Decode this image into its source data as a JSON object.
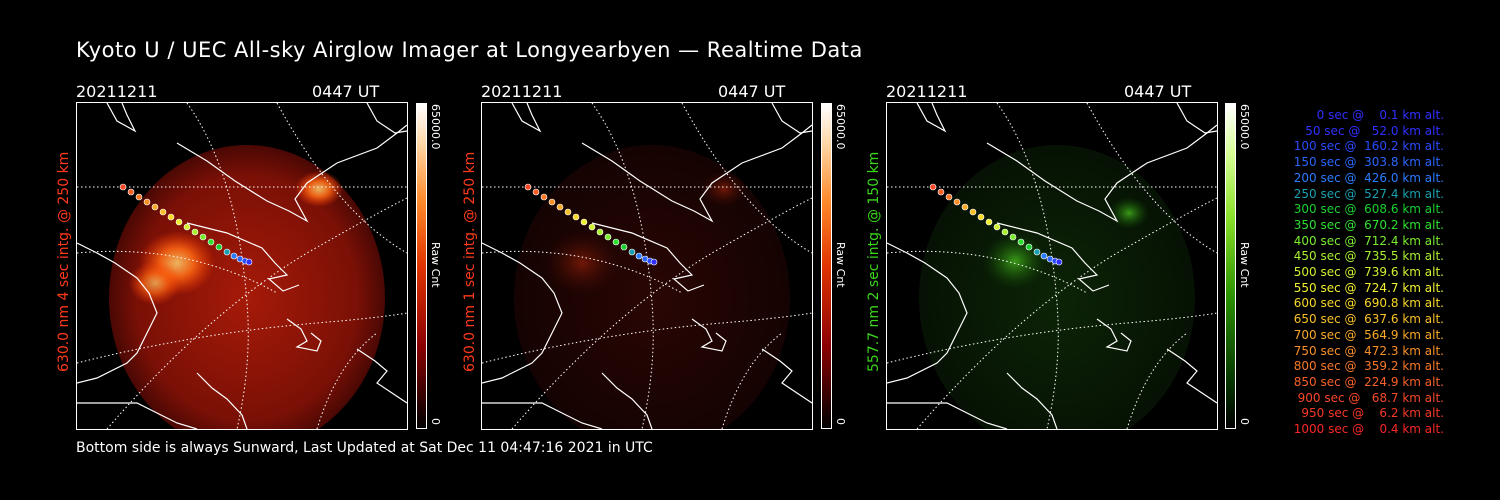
{
  "title": "Kyoto U / UEC All-sky Airglow Imager at Longyearbyen — Realtime Data",
  "footer": "Bottom side is always Sunward, Last Updated at Sat Dec 11 04:47:16 2021 in UTC",
  "panels": [
    {
      "date": "20211211",
      "time": "0447 UT",
      "ylabel": "630.0 nm 4 sec intg. @ 250 km",
      "ylabel_color": "#ff3a1a",
      "cbar_max": "65000.0",
      "cbar_min": "0",
      "cbar_unit": "Raw Cnt"
    },
    {
      "date": "20211211",
      "time": "0447 UT",
      "ylabel": "630.0 nm 1 sec intg. @ 250 km",
      "ylabel_color": "#ff3a1a",
      "cbar_max": "65000.0",
      "cbar_min": "0",
      "cbar_unit": "Raw Cnt"
    },
    {
      "date": "20211211",
      "time": "0447 UT",
      "ylabel": "557.7 nm 2 sec intg. @ 150 km",
      "ylabel_color": "#3ad81a",
      "cbar_max": "65000.0",
      "cbar_min": "0",
      "cbar_unit": "Raw Cnt"
    }
  ],
  "legend": [
    {
      "text": "   0 sec @    0.1 km alt.",
      "color": "#3030ff"
    },
    {
      "text": "  50 sec @   52.0 km alt.",
      "color": "#3030ff"
    },
    {
      "text": " 100 sec @  160.2 km alt.",
      "color": "#2a4aff"
    },
    {
      "text": " 150 sec @  303.8 km alt.",
      "color": "#2a66ff"
    },
    {
      "text": " 200 sec @  426.0 km alt.",
      "color": "#2a7cff"
    },
    {
      "text": " 250 sec @  527.4 km alt.",
      "color": "#1aa0b0"
    },
    {
      "text": " 300 sec @  608.6 km alt.",
      "color": "#1ad030"
    },
    {
      "text": " 350 sec @  670.2 km alt.",
      "color": "#30e030"
    },
    {
      "text": " 400 sec @  712.4 km alt.",
      "color": "#7aec30"
    },
    {
      "text": " 450 sec @  735.5 km alt.",
      "color": "#a8f030"
    },
    {
      "text": " 500 sec @  739.6 km alt.",
      "color": "#d0f030"
    },
    {
      "text": " 550 sec @  724.7 km alt.",
      "color": "#f0f030"
    },
    {
      "text": " 600 sec @  690.8 km alt.",
      "color": "#f8d828"
    },
    {
      "text": " 650 sec @  637.6 km alt.",
      "color": "#f8c028"
    },
    {
      "text": " 700 sec @  564.9 km alt.",
      "color": "#f8a828"
    },
    {
      "text": " 750 sec @  472.3 km alt.",
      "color": "#f89028"
    },
    {
      "text": " 800 sec @  359.2 km alt.",
      "color": "#f87828"
    },
    {
      "text": " 850 sec @  224.9 km alt.",
      "color": "#f86028"
    },
    {
      "text": " 900 sec @   68.7 km alt.",
      "color": "#f84828"
    },
    {
      "text": " 950 sec @    6.2 km alt.",
      "color": "#f83828"
    },
    {
      "text": "1000 sec @    0.4 km alt.",
      "color": "#f82828"
    }
  ]
}
